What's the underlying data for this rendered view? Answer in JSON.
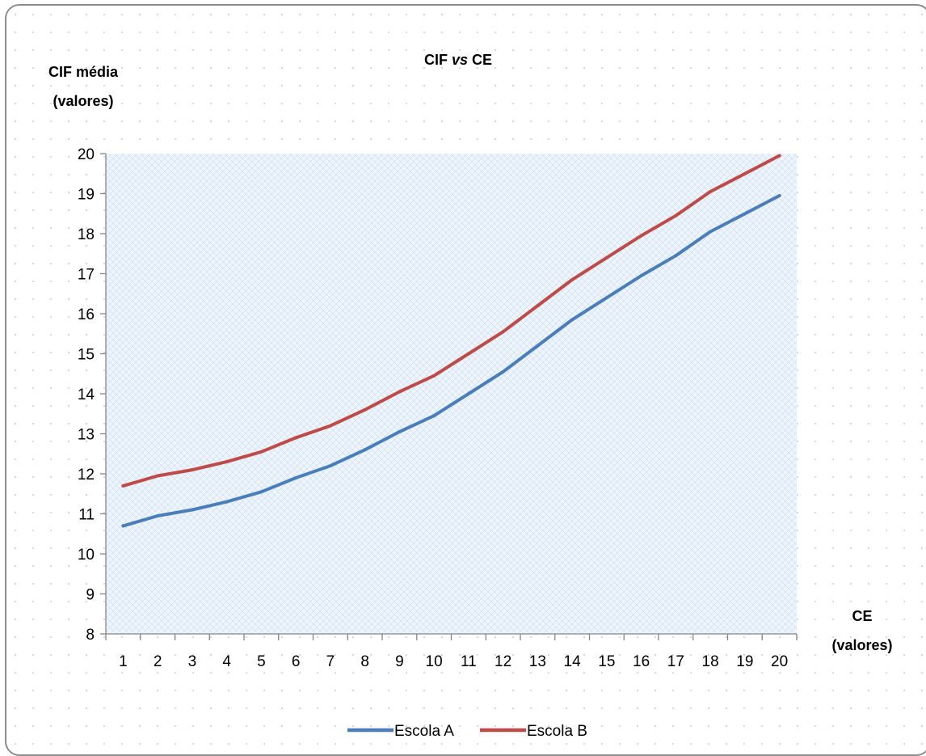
{
  "chart_data": {
    "type": "line",
    "title": {
      "prefix": "CIF ",
      "italic": "vs",
      "suffix": " CE"
    },
    "ylabel": {
      "line1": "CIF média",
      "line2": "(valores)"
    },
    "xlabel": {
      "line1": "CE",
      "line2": "(valores)"
    },
    "categories": [
      "1",
      "2",
      "3",
      "4",
      "5",
      "6",
      "7",
      "8",
      "9",
      "10",
      "11",
      "12",
      "13",
      "14",
      "15",
      "16",
      "17",
      "18",
      "19",
      "20"
    ],
    "ylim": [
      8,
      20
    ],
    "yticks": [
      "8",
      "9",
      "10",
      "11",
      "12",
      "13",
      "14",
      "15",
      "16",
      "17",
      "18",
      "19",
      "20"
    ],
    "legend_position": "bottom",
    "series": [
      {
        "name": "Escola A",
        "color": "#4a7ebb",
        "values": [
          10.7,
          10.95,
          11.1,
          11.3,
          11.55,
          11.9,
          12.2,
          12.6,
          13.05,
          13.45,
          14.0,
          14.55,
          15.2,
          15.85,
          16.4,
          16.95,
          17.45,
          18.05,
          18.5,
          18.95
        ]
      },
      {
        "name": "Escola B",
        "color": "#be4b48",
        "values": [
          11.7,
          11.95,
          12.1,
          12.3,
          12.55,
          12.9,
          13.2,
          13.6,
          14.05,
          14.45,
          15.0,
          15.55,
          16.2,
          16.85,
          17.4,
          17.95,
          18.45,
          19.05,
          19.5,
          19.95
        ]
      }
    ],
    "grid": false,
    "plot_background": "#e6f0fa"
  }
}
